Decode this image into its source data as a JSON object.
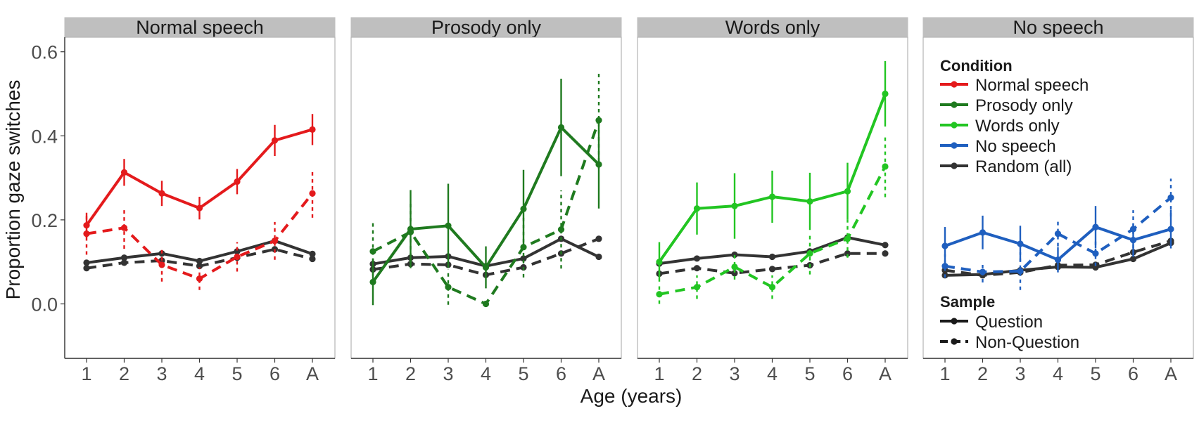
{
  "chart_data": {
    "type": "line",
    "ylabel": "Proportion gaze switches",
    "xlabel": "Age (years)",
    "x_categories": [
      "1",
      "2",
      "3",
      "4",
      "5",
      "6",
      "A"
    ],
    "ylim": [
      -0.13,
      0.63
    ],
    "y_ticks": [
      0.0,
      0.2,
      0.4,
      0.6
    ],
    "y_tick_labels": [
      "0.0",
      "0.2",
      "0.4",
      "0.6"
    ],
    "grid": false,
    "legend_placement": "inside last panel",
    "colors": {
      "Normal speech": "#e41a1c",
      "Prosody only": "#1f7a1f",
      "Words only": "#22c522",
      "No speech": "#1f5fbf",
      "Random (all)": "#333333"
    },
    "panels": [
      {
        "title": "Normal speech",
        "condition": "Normal speech",
        "series": [
          {
            "condition": "Normal speech",
            "sample": "Question",
            "values": [
              0.187,
              0.313,
              0.263,
              0.228,
              0.291,
              0.389,
              0.415
            ],
            "errors": [
              0.03,
              0.032,
              0.03,
              0.027,
              0.03,
              0.037,
              0.037
            ]
          },
          {
            "condition": "Normal speech",
            "sample": "Non-Question",
            "values": [
              0.167,
              0.181,
              0.093,
              0.06,
              0.112,
              0.15,
              0.263
            ],
            "errors": [
              0.05,
              0.05,
              0.04,
              0.027,
              0.035,
              0.045,
              0.058
            ]
          },
          {
            "condition": "Random (all)",
            "sample": "Question",
            "values": [
              0.098,
              0.11,
              0.12,
              0.102,
              0.125,
              0.15,
              0.119
            ],
            "errors": []
          },
          {
            "condition": "Random (all)",
            "sample": "Non-Question",
            "values": [
              0.085,
              0.098,
              0.103,
              0.09,
              0.11,
              0.13,
              0.107
            ],
            "errors": []
          }
        ]
      },
      {
        "title": "Prosody only",
        "condition": "Prosody only",
        "series": [
          {
            "condition": "Prosody only",
            "sample": "Question",
            "values": [
              0.052,
              0.178,
              0.186,
              0.087,
              0.226,
              0.42,
              0.332
            ],
            "errors": [
              0.055,
              0.093,
              0.1,
              0.05,
              0.093,
              0.116,
              0.105
            ]
          },
          {
            "condition": "Prosody only",
            "sample": "Non-Question",
            "values": [
              0.125,
              0.171,
              0.04,
              0.0,
              0.135,
              0.177,
              0.437
            ],
            "errors": [
              0.075,
              0.075,
              0.042,
              0.0,
              0.072,
              0.093,
              0.115
            ]
          },
          {
            "condition": "Random (all)",
            "sample": "Question",
            "values": [
              0.095,
              0.11,
              0.113,
              0.09,
              0.108,
              0.155,
              0.112
            ],
            "errors": []
          },
          {
            "condition": "Random (all)",
            "sample": "Non-Question",
            "values": [
              0.082,
              0.095,
              0.093,
              0.069,
              0.087,
              0.12,
              0.155
            ],
            "errors": []
          }
        ]
      },
      {
        "title": "Words only",
        "condition": "Words only",
        "series": [
          {
            "condition": "Words only",
            "sample": "Question",
            "values": [
              0.1,
              0.227,
              0.233,
              0.255,
              0.244,
              0.268,
              0.5
            ],
            "errors": [
              0.047,
              0.062,
              0.078,
              0.062,
              0.068,
              0.068,
              0.078
            ]
          },
          {
            "condition": "Words only",
            "sample": "Non-Question",
            "values": [
              0.023,
              0.04,
              0.088,
              0.04,
              0.12,
              0.155,
              0.327
            ],
            "errors": [
              0.023,
              0.028,
              0.03,
              0.028,
              0.05,
              0.045,
              0.073
            ]
          },
          {
            "condition": "Random (all)",
            "sample": "Question",
            "values": [
              0.096,
              0.108,
              0.117,
              0.112,
              0.125,
              0.158,
              0.14
            ],
            "errors": []
          },
          {
            "condition": "Random (all)",
            "sample": "Non-Question",
            "values": [
              0.072,
              0.085,
              0.073,
              0.083,
              0.092,
              0.12,
              0.12
            ],
            "errors": []
          }
        ]
      },
      {
        "title": "No speech",
        "condition": "No speech",
        "series": [
          {
            "condition": "No speech",
            "sample": "Question",
            "values": [
              0.138,
              0.17,
              0.143,
              0.105,
              0.183,
              0.152,
              0.178
            ],
            "errors": [
              0.045,
              0.04,
              0.043,
              0.03,
              0.05,
              0.04,
              0.046
            ]
          },
          {
            "condition": "No speech",
            "sample": "Non-Question",
            "values": [
              0.09,
              0.076,
              0.078,
              0.167,
              0.12,
              0.178,
              0.253
            ],
            "errors": [
              0.028,
              0.025,
              0.045,
              0.03,
              0.03,
              0.045,
              0.045
            ]
          },
          {
            "condition": "Random (all)",
            "sample": "Question",
            "values": [
              0.068,
              0.07,
              0.08,
              0.088,
              0.087,
              0.107,
              0.145
            ],
            "errors": []
          },
          {
            "condition": "Random (all)",
            "sample": "Non-Question",
            "values": [
              0.08,
              0.068,
              0.075,
              0.092,
              0.093,
              0.123,
              0.15
            ],
            "errors": []
          }
        ]
      }
    ],
    "legend": {
      "condition_title": "Condition",
      "condition_entries": [
        "Normal speech",
        "Prosody only",
        "Words only",
        "No speech",
        "Random (all)"
      ],
      "sample_title": "Sample",
      "sample_entries": [
        "Question",
        "Non-Question"
      ]
    }
  }
}
